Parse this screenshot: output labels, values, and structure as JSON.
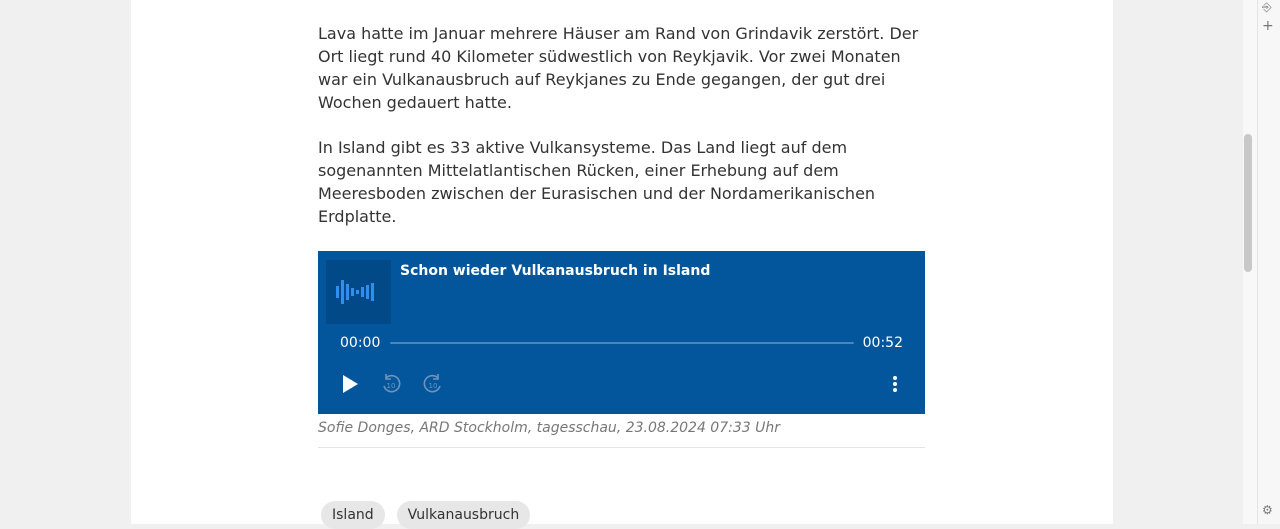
{
  "article": {
    "paragraph1": "Lava hatte im Januar mehrere Häuser am Rand von Grindavik zerstört. Der Ort liegt rund 40 Kilometer südwestlich von Reykjavik. Vor zwei Monaten war ein Vulkanausbruch auf Reykjanes zu Ende gegangen, der gut drei Wochen gedauert hatte.",
    "paragraph2": "In Island gibt es 33 aktive Vulkansysteme. Das Land liegt auf dem sogenannten Mittelatlantischen Rücken, einer Erhebung auf dem Meeresboden zwischen der Eurasischen und der Nordamerikanischen Erdplatte."
  },
  "player": {
    "title": "Schon wieder Vulkanausbruch in Island",
    "current_time": "00:00",
    "duration": "00:52",
    "progress": 0,
    "rewind_label": "10",
    "forward_label": "10",
    "background_color": "#03569b"
  },
  "caption": "Sofie Donges, ARD Stockholm, tagesschau, 23.08.2024 07:33 Uhr",
  "tags": [
    "Island",
    "Vulkanausbruch"
  ]
}
